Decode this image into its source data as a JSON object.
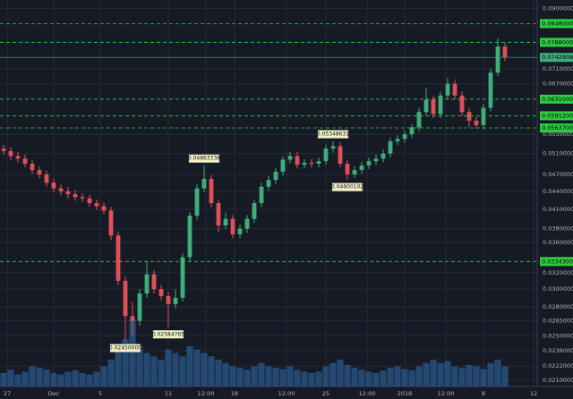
{
  "chart_data": {
    "type": "candlestick",
    "log_scale": true,
    "grid": true,
    "up_color": "#3fae7a",
    "down_color": "#e0505a",
    "volume_color": "#2f6fb0",
    "price_line_color": "#2ecc40",
    "current_price_color": "#3fae7a",
    "xlim": [
      -0.5,
      74.5
    ],
    "xticks": [
      {
        "value": 0.5,
        "label": "27"
      },
      {
        "value": 7,
        "label": "Dec"
      },
      {
        "value": 13.5,
        "label": "5"
      },
      {
        "value": 23,
        "label": "11"
      },
      {
        "value": 28.25,
        "label": "12:00"
      },
      {
        "value": 32.25,
        "label": "18"
      },
      {
        "value": 39.5,
        "label": "12:00"
      },
      {
        "value": 45,
        "label": "25"
      },
      {
        "value": 50.75,
        "label": "12:00"
      },
      {
        "value": 56,
        "label": "2018"
      },
      {
        "value": 61.75,
        "label": "12:00"
      },
      {
        "value": 67,
        "label": "8"
      },
      {
        "value": 74,
        "label": "12"
      }
    ],
    "ylim": [
      0.0205,
      0.093
    ],
    "yticks": [
      {
        "value": 0.09,
        "label": "0.09000000"
      },
      {
        "value": 0.071,
        "label": "0.07100000"
      },
      {
        "value": 0.067,
        "label": "0.06700000"
      },
      {
        "value": 0.055,
        "label": "0.05500000"
      },
      {
        "value": 0.051,
        "label": "0.05100000"
      },
      {
        "value": 0.047,
        "label": "0.04700000"
      },
      {
        "value": 0.044,
        "label": "0.04400000"
      },
      {
        "value": 0.041,
        "label": "0.04100000"
      },
      {
        "value": 0.038,
        "label": "0.03800000"
      },
      {
        "value": 0.036,
        "label": "0.03600000"
      },
      {
        "value": 0.032,
        "label": "0.03200000"
      },
      {
        "value": 0.03,
        "label": "0.03000000"
      },
      {
        "value": 0.028,
        "label": "0.02800000"
      },
      {
        "value": 0.0265,
        "label": "0.02650000"
      },
      {
        "value": 0.025,
        "label": "0.02500000"
      },
      {
        "value": 0.0236,
        "label": "0.02360000"
      },
      {
        "value": 0.0222,
        "label": "0.02220000"
      },
      {
        "value": 0.021,
        "label": "0.02100000"
      }
    ],
    "price_lines": [
      {
        "value": 0.0848,
        "label": "0.08480000"
      },
      {
        "value": 0.0788,
        "label": "0.07880000"
      },
      {
        "value": 0.0631,
        "label": "0.06310000"
      },
      {
        "value": 0.05912,
        "label": "0.05912000"
      },
      {
        "value": 0.05637,
        "label": "0.05637000"
      },
      {
        "value": 0.03343,
        "label": "0.03343000"
      }
    ],
    "current_price": {
      "value": 0.07429086,
      "label": "0.07429086"
    },
    "annotations": [
      {
        "x": 28,
        "y": 0.04863338,
        "label": "0.04863338"
      },
      {
        "x": 46,
        "y": 0.05348631,
        "label": "0.05348631"
      },
      {
        "x": 48,
        "y": 0.04600102,
        "label": "0.04600102"
      },
      {
        "x": 23,
        "y": 0.02584765,
        "label": "0.02584765"
      },
      {
        "x": 17,
        "y": 0.0245,
        "label": "0.02450000"
      }
    ],
    "open": [
      0.052,
      0.0515,
      0.0505,
      0.05,
      0.049,
      0.0478,
      0.047,
      0.0455,
      0.0445,
      0.044,
      0.0435,
      0.043,
      0.0428,
      0.042,
      0.0415,
      0.0408,
      0.037,
      0.031,
      0.027,
      0.0265,
      0.0295,
      0.0318,
      0.03,
      0.0292,
      0.0283,
      0.029,
      0.034,
      0.04,
      0.0445,
      0.0462,
      0.042,
      0.0385,
      0.0395,
      0.0372,
      0.038,
      0.0395,
      0.042,
      0.0448,
      0.046,
      0.0475,
      0.0498,
      0.0505,
      0.0488,
      0.0492,
      0.049,
      0.0495,
      0.052,
      0.0525,
      0.049,
      0.047,
      0.0478,
      0.0487,
      0.0495,
      0.05,
      0.051,
      0.0535,
      0.054,
      0.055,
      0.0565,
      0.06,
      0.063,
      0.0595,
      0.064,
      0.067,
      0.064,
      0.06,
      0.058,
      0.057,
      0.061,
      0.07,
      0.0775
    ],
    "high": [
      0.0528,
      0.0523,
      0.0513,
      0.0508,
      0.0497,
      0.0485,
      0.0477,
      0.0462,
      0.0452,
      0.0447,
      0.0442,
      0.0436,
      0.0434,
      0.0426,
      0.0421,
      0.0414,
      0.0376,
      0.0315,
      0.0285,
      0.03,
      0.0335,
      0.0323,
      0.0305,
      0.0297,
      0.03,
      0.0345,
      0.0406,
      0.0452,
      0.04863338,
      0.0469,
      0.0426,
      0.0405,
      0.0401,
      0.0386,
      0.0401,
      0.0426,
      0.0455,
      0.0467,
      0.0482,
      0.0505,
      0.0513,
      0.0513,
      0.0499,
      0.0499,
      0.0502,
      0.0528,
      0.05348631,
      0.0533,
      0.0497,
      0.0485,
      0.0494,
      0.0502,
      0.0508,
      0.0518,
      0.0543,
      0.0548,
      0.0558,
      0.0573,
      0.0609,
      0.066,
      0.0639,
      0.065,
      0.0685,
      0.068,
      0.065,
      0.0609,
      0.0589,
      0.0619,
      0.0711,
      0.08,
      0.0787
    ],
    "low": [
      0.0507,
      0.0497,
      0.0492,
      0.0483,
      0.0471,
      0.0463,
      0.0448,
      0.0438,
      0.0433,
      0.0428,
      0.0424,
      0.0422,
      0.0414,
      0.0409,
      0.0402,
      0.0364,
      0.0305,
      0.0245,
      0.025,
      0.026,
      0.029,
      0.0295,
      0.0287,
      0.02584765,
      0.0278,
      0.0286,
      0.0335,
      0.0394,
      0.0438,
      0.0414,
      0.0375,
      0.0379,
      0.0366,
      0.0366,
      0.0374,
      0.0389,
      0.0414,
      0.0441,
      0.0453,
      0.0468,
      0.0491,
      0.0481,
      0.0481,
      0.0483,
      0.0483,
      0.0488,
      0.0512,
      0.0483,
      0.04600102,
      0.0463,
      0.0471,
      0.048,
      0.0488,
      0.0493,
      0.0502,
      0.0527,
      0.0532,
      0.0542,
      0.0557,
      0.0591,
      0.0586,
      0.0586,
      0.063,
      0.063,
      0.0591,
      0.0565,
      0.0561,
      0.0561,
      0.0601,
      0.069,
      0.0732
    ],
    "close": [
      0.0515,
      0.0505,
      0.05,
      0.049,
      0.0478,
      0.047,
      0.0455,
      0.0445,
      0.044,
      0.0435,
      0.043,
      0.0428,
      0.042,
      0.0415,
      0.0408,
      0.037,
      0.031,
      0.027,
      0.0265,
      0.0295,
      0.0318,
      0.03,
      0.0292,
      0.0283,
      0.029,
      0.034,
      0.04,
      0.0445,
      0.0462,
      0.042,
      0.0385,
      0.0395,
      0.0372,
      0.038,
      0.0395,
      0.042,
      0.0448,
      0.046,
      0.0475,
      0.0498,
      0.0505,
      0.0488,
      0.0492,
      0.049,
      0.0495,
      0.052,
      0.0525,
      0.049,
      0.047,
      0.0478,
      0.0487,
      0.0495,
      0.05,
      0.051,
      0.0535,
      0.054,
      0.055,
      0.0565,
      0.06,
      0.063,
      0.0595,
      0.064,
      0.067,
      0.064,
      0.06,
      0.058,
      0.057,
      0.061,
      0.07,
      0.0775,
      0.0743
    ],
    "volume": [
      20,
      25,
      18,
      22,
      30,
      28,
      25,
      20,
      18,
      22,
      24,
      20,
      18,
      22,
      30,
      40,
      55,
      70,
      100,
      60,
      50,
      45,
      40,
      55,
      50,
      45,
      60,
      55,
      50,
      45,
      40,
      35,
      30,
      28,
      25,
      30,
      35,
      30,
      28,
      26,
      30,
      25,
      22,
      20,
      22,
      30,
      35,
      40,
      32,
      28,
      25,
      22,
      20,
      24,
      28,
      30,
      26,
      24,
      30,
      35,
      40,
      35,
      38,
      30,
      28,
      32,
      30,
      26,
      35,
      40,
      30
    ]
  }
}
